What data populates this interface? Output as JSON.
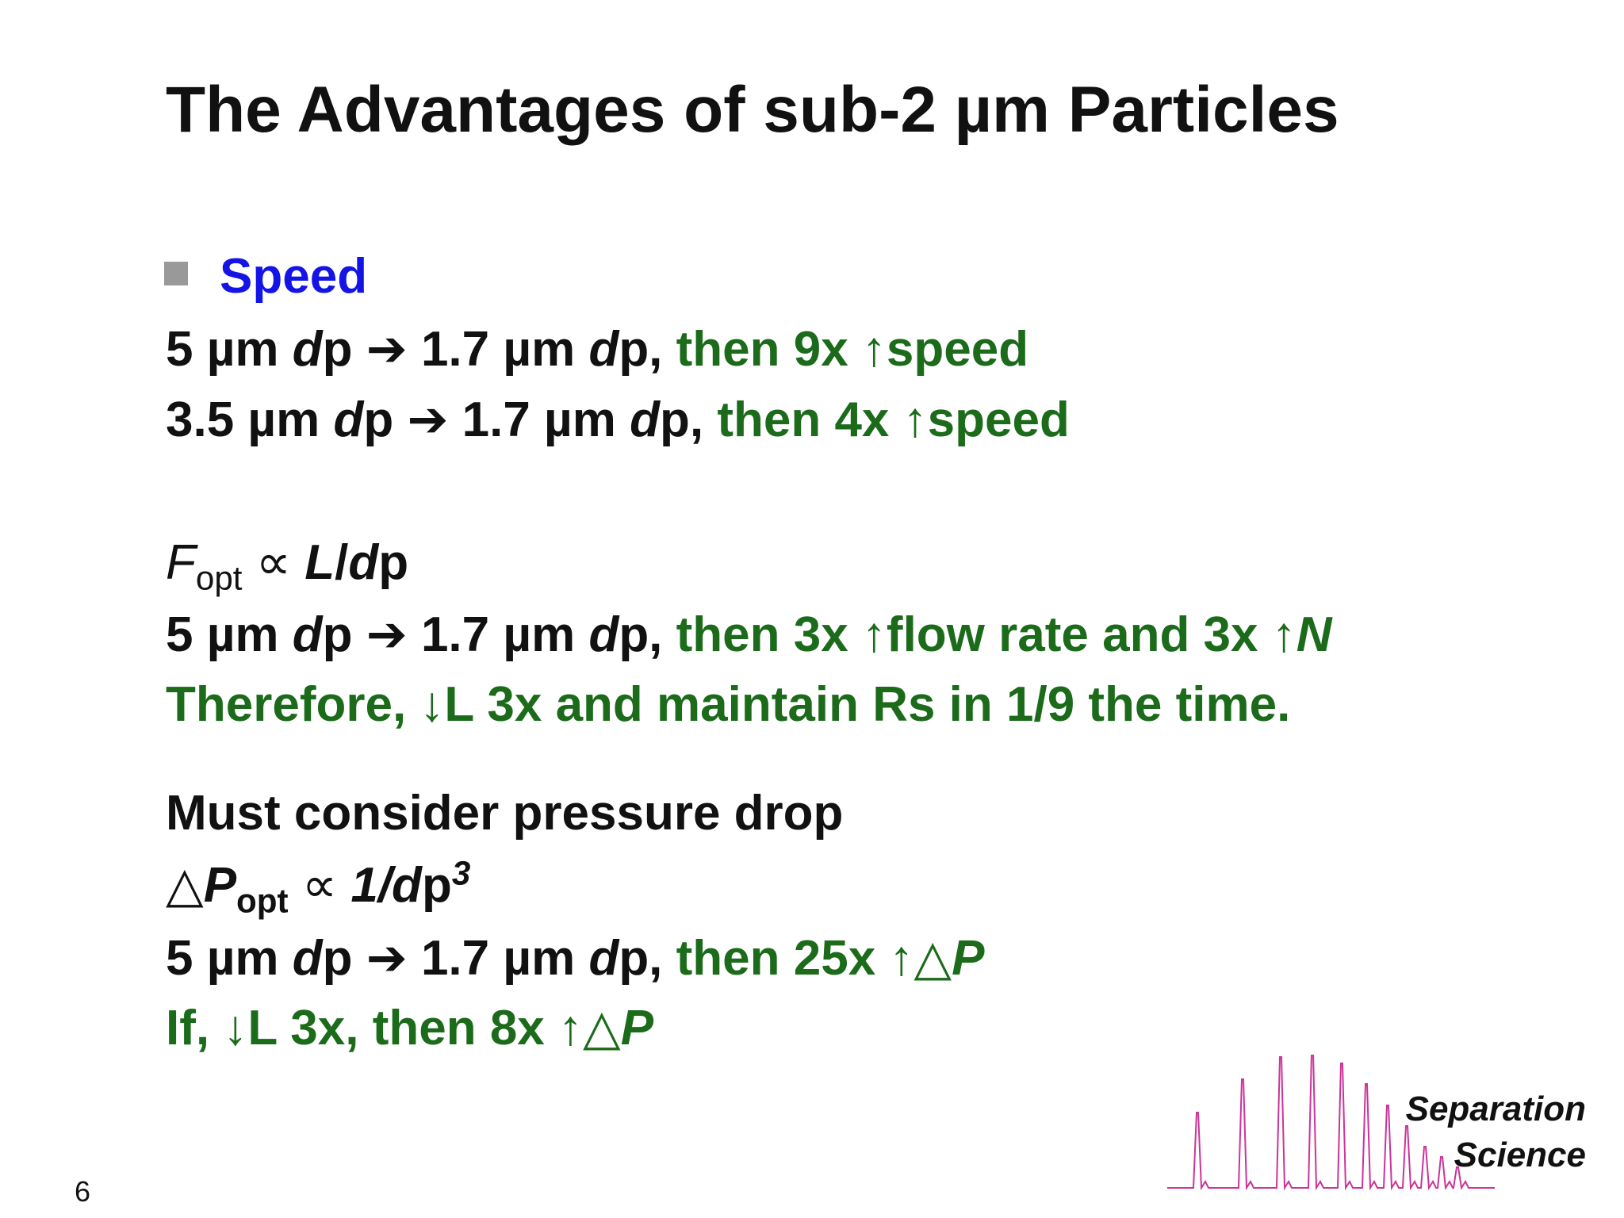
{
  "title": "The Advantages of sub-2 µm Particles",
  "bullet": "Speed",
  "lines": [
    [
      "5 µm ",
      "d",
      "p ➔ 1.7 µm ",
      "d",
      "p, ",
      "then 9x ↑speed"
    ],
    [
      "3.5 µm ",
      "d",
      "p ➔ 1.7 µm ",
      "d",
      "p, ",
      "then 4x ↑speed"
    ],
    [
      "F",
      "opt",
      " ∝ ",
      "L",
      "/",
      "d",
      "p"
    ],
    [
      "5 µm ",
      "d",
      "p ➔ 1.7 µm ",
      "d",
      "p, ",
      "then 3x ↑flow rate and 3x ↑",
      "N"
    ],
    [
      "Therefore, ↓L 3x and maintain Rs in 1/9 the time."
    ],
    [
      "Must consider pressure drop"
    ],
    [
      "△",
      "P",
      "opt",
      " ∝ ",
      "1/d",
      "p",
      "3"
    ],
    [
      "5 µm ",
      "d",
      "p ➔ 1.7 µm ",
      "d",
      "p, ",
      "then 25x ↑△",
      "P"
    ],
    [
      "If, ↓L 3x, then 8x ↑△",
      "P"
    ]
  ],
  "logo": [
    "Separation",
    "Science"
  ],
  "page_number": "6"
}
